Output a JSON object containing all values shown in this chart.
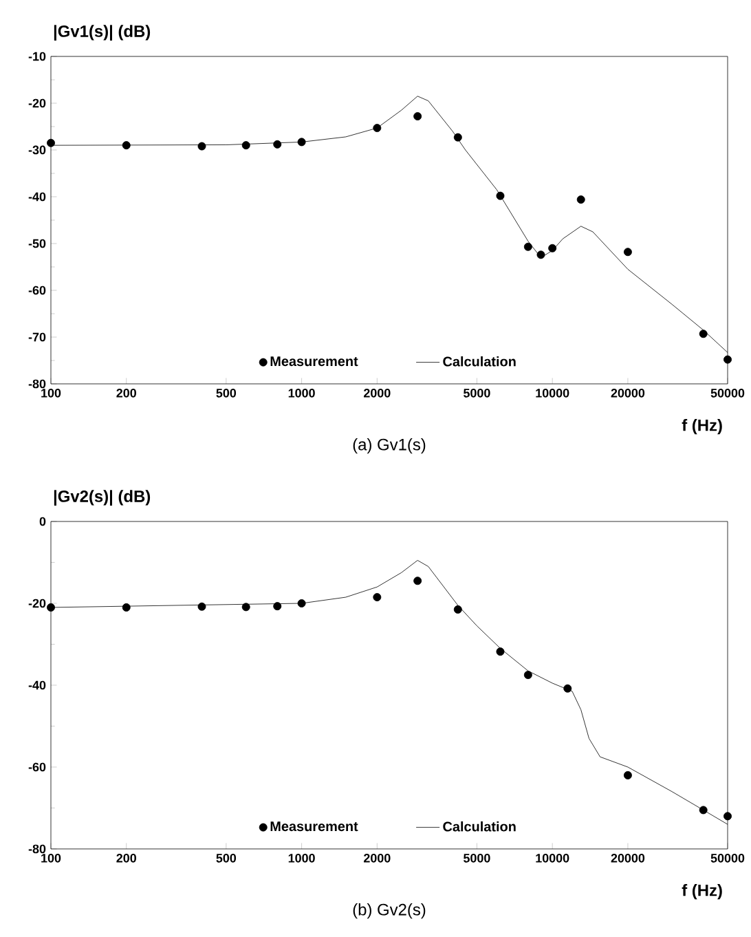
{
  "chart_data": [
    {
      "type": "line",
      "title": "(a) Gv1(s)",
      "xlabel": "f (Hz)",
      "ylabel": "|Gv1(s)| (dB)",
      "log": "x",
      "xlim": [
        100,
        50000
      ],
      "ylim": [
        -80,
        -10
      ],
      "xticks": [
        100,
        200,
        500,
        1000,
        2000,
        5000,
        10000,
        20000,
        50000
      ],
      "yticks": [
        -80,
        -70,
        -60,
        -50,
        -40,
        -30,
        -20,
        -10
      ],
      "legend": "bottom",
      "grid": false,
      "series": [
        {
          "name": "Measurement",
          "type": "scatter",
          "marker": "circle",
          "color": "#000000",
          "x": [
            100,
            200,
            400,
            600,
            800,
            1000,
            2000,
            2900,
            4200,
            6200,
            8000,
            9000,
            10000,
            13000,
            20000,
            40000,
            50000
          ],
          "values": [
            -28.5,
            -29,
            -29.2,
            -29,
            -28.8,
            -28.3,
            -25.3,
            -22.8,
            -27.3,
            -39.8,
            -50.7,
            -52.4,
            -51,
            -40.6,
            -51.8,
            -69.3,
            -74.8
          ]
        },
        {
          "name": "Calculation",
          "type": "line",
          "marker": "none",
          "line_style": "solid",
          "color": "#000000",
          "x": [
            100,
            500,
            1000,
            1500,
            2000,
            2500,
            2900,
            3200,
            4000,
            4500,
            6000,
            8000,
            9000,
            10000,
            11000,
            13000,
            14500,
            20000,
            30000,
            40000,
            50000
          ],
          "values": [
            -29,
            -28.9,
            -28.3,
            -27.2,
            -25.3,
            -21.5,
            -18.5,
            -19.5,
            -26,
            -30,
            -38.5,
            -49.5,
            -53,
            -51.5,
            -49,
            -46.3,
            -47.5,
            -55.5,
            -63,
            -68.5,
            -73.3
          ]
        }
      ]
    },
    {
      "type": "line",
      "title": "(b) Gv2(s)",
      "xlabel": "f (Hz)",
      "ylabel": "|Gv2(s)| (dB)",
      "log": "x",
      "xlim": [
        100,
        50000
      ],
      "ylim": [
        -80,
        0
      ],
      "xticks": [
        100,
        200,
        500,
        1000,
        2000,
        5000,
        10000,
        20000,
        50000
      ],
      "yticks": [
        -80,
        -60,
        -40,
        -20,
        0
      ],
      "legend": "bottom",
      "grid": false,
      "series": [
        {
          "name": "Measurement",
          "type": "scatter",
          "marker": "circle",
          "color": "#000000",
          "x": [
            100,
            200,
            400,
            600,
            800,
            1000,
            2000,
            2900,
            4200,
            6200,
            8000,
            11500,
            20000,
            40000,
            50000
          ],
          "values": [
            -21,
            -21,
            -20.8,
            -20.9,
            -20.7,
            -20,
            -18.5,
            -14.5,
            -21.5,
            -31.8,
            -37.5,
            -40.8,
            -62,
            -70.5,
            -72
          ]
        },
        {
          "name": "Calculation",
          "type": "line",
          "marker": "none",
          "line_style": "solid",
          "color": "#000000",
          "x": [
            100,
            1000,
            1500,
            2000,
            2500,
            2900,
            3200,
            4200,
            5000,
            6200,
            8000,
            10000,
            12000,
            13000,
            14000,
            15500,
            20000,
            30000,
            40000,
            50000
          ],
          "values": [
            -21,
            -20,
            -18.5,
            -16,
            -12.5,
            -9.5,
            -11,
            -20.5,
            -25.5,
            -31,
            -36.5,
            -39.5,
            -41.5,
            -46,
            -53,
            -57.5,
            -60,
            -66,
            -70.5,
            -74
          ]
        }
      ]
    }
  ]
}
